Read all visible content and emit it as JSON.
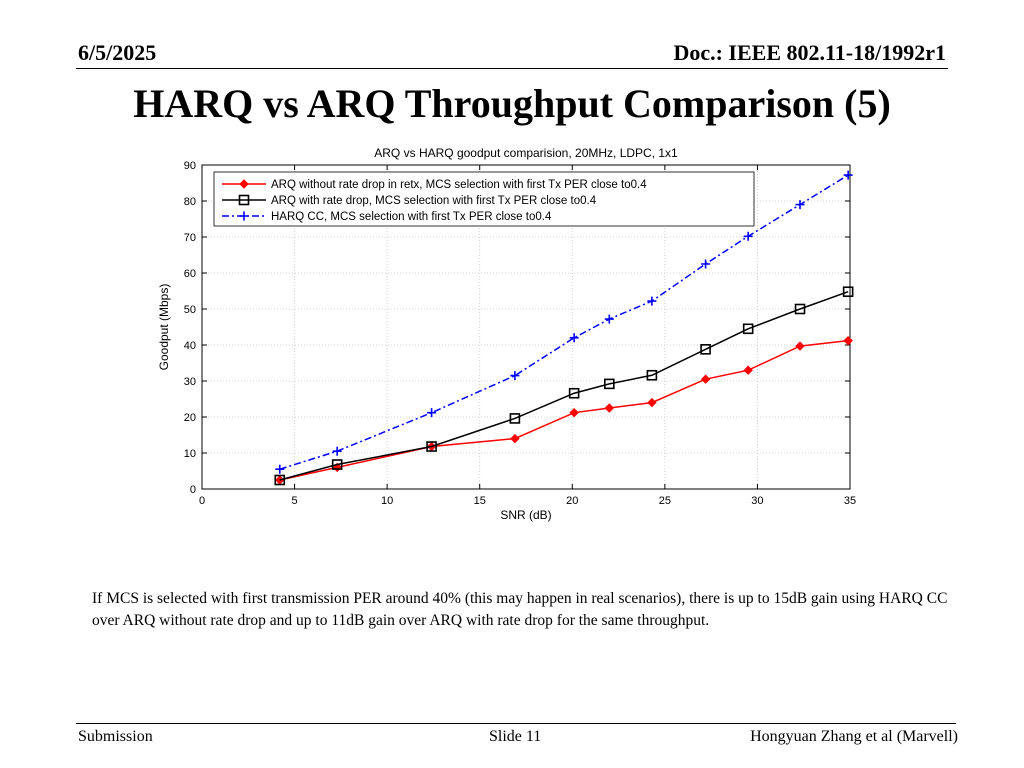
{
  "header": {
    "date": "6/5/2025",
    "doc": "Doc.: IEEE 802.11-18/1992r1"
  },
  "slide_title": "HARQ vs ARQ Throughput Comparison (5)",
  "chart_data": {
    "type": "line",
    "title": "ARQ vs HARQ goodput comparision, 20MHz, LDPC, 1x1",
    "xlabel": "SNR (dB)",
    "ylabel": "Goodput (Mbps)",
    "xlim": [
      0,
      35
    ],
    "ylim": [
      0,
      90
    ],
    "xticks": [
      0,
      5,
      10,
      15,
      20,
      25,
      30,
      35
    ],
    "yticks": [
      0,
      10,
      20,
      30,
      40,
      50,
      60,
      70,
      80,
      90
    ],
    "grid": true,
    "legend_position": "top-left",
    "series": [
      {
        "name": "ARQ without rate drop in retx, MCS selection with first Tx PER close to0.4",
        "color": "#ff0000",
        "marker": "diamond",
        "dash": "solid",
        "x": [
          4.2,
          7.3,
          12.4,
          16.9,
          20.1,
          22.0,
          24.3,
          27.2,
          29.5,
          32.3,
          34.9
        ],
        "y": [
          2.5,
          6.0,
          11.8,
          14.0,
          21.2,
          22.5,
          24.0,
          30.5,
          33.0,
          39.7,
          41.2
        ]
      },
      {
        "name": "ARQ with rate drop, MCS selection with first Tx PER close to0.4",
        "color": "#000000",
        "marker": "square",
        "dash": "solid",
        "x": [
          4.2,
          7.3,
          12.4,
          16.9,
          20.1,
          22.0,
          24.3,
          27.2,
          29.5,
          32.3,
          34.9
        ],
        "y": [
          2.5,
          6.8,
          11.8,
          19.6,
          26.6,
          29.2,
          31.6,
          38.8,
          44.5,
          50.0,
          54.8
        ]
      },
      {
        "name": "HARQ CC, MCS selection with first Tx PER close to0.4",
        "color": "#0000ff",
        "marker": "plus",
        "dash": "dashdot",
        "x": [
          4.2,
          7.3,
          12.4,
          16.9,
          20.1,
          22.0,
          24.3,
          27.2,
          29.5,
          32.3,
          34.9
        ],
        "y": [
          5.5,
          10.5,
          21.2,
          31.5,
          42.0,
          47.2,
          52.2,
          62.5,
          70.2,
          79.0,
          87.2
        ]
      }
    ]
  },
  "note": "If MCS is selected with first transmission PER around 40% (this may happen in real scenarios), there is up to 15dB gain using HARQ CC over ARQ without rate drop and up to 11dB gain over ARQ with rate drop for the same throughput.",
  "footer": {
    "left": "Submission",
    "center": "Slide 11",
    "right": "Hongyuan Zhang et al (Marvell)"
  }
}
